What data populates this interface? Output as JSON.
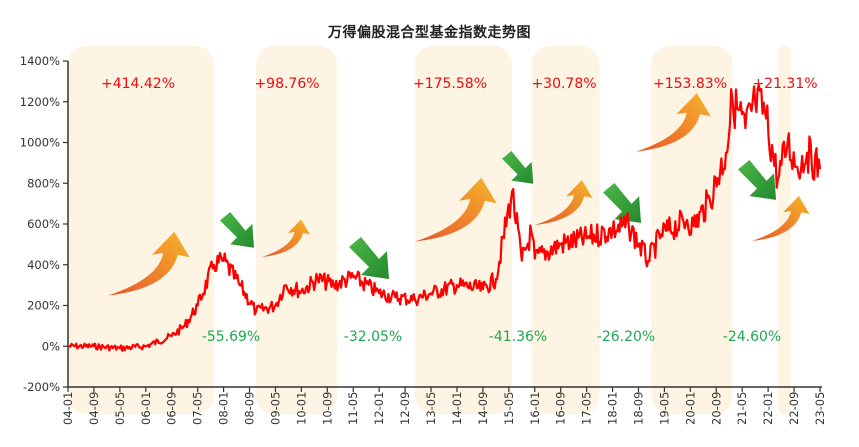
{
  "chart_data": {
    "type": "line",
    "title": "万得偏股混合型基金指数走势图",
    "xlabel": "",
    "ylabel": "",
    "ylim": [
      -200,
      1400
    ],
    "y_ticks": [
      "-200%",
      "0%",
      "200%",
      "400%",
      "600%",
      "800%",
      "1000%",
      "1200%",
      "1400%"
    ],
    "x_ticks": [
      "04-01",
      "04-09",
      "05-05",
      "06-01",
      "06-09",
      "07-05",
      "08-01",
      "08-09",
      "09-05",
      "10-01",
      "10-09",
      "11-05",
      "12-01",
      "12-09",
      "13-05",
      "14-01",
      "14-09",
      "15-05",
      "16-01",
      "16-09",
      "17-05",
      "18-01",
      "18-09",
      "19-05",
      "20-01",
      "20-09",
      "21-05",
      "22-01",
      "22-09",
      "23-05"
    ],
    "grid": false,
    "line_color": "#ff0000",
    "series": [
      {
        "name": "万得偏股混合型基金指数",
        "x": [
          "04-01",
          "04-09",
          "05-05",
          "06-01",
          "06-09",
          "07-01",
          "07-05",
          "07-10",
          "08-01",
          "08-06",
          "08-11",
          "09-05",
          "09-08",
          "10-01",
          "10-06",
          "10-11",
          "11-05",
          "12-01",
          "12-06",
          "12-12",
          "13-05",
          "14-01",
          "14-09",
          "15-01",
          "15-06",
          "15-09",
          "15-12",
          "16-01",
          "16-09",
          "17-05",
          "18-01",
          "18-06",
          "18-12",
          "19-04",
          "19-12",
          "20-02",
          "20-07",
          "20-12",
          "21-02",
          "21-06",
          "21-09",
          "21-12",
          "22-04",
          "22-07",
          "22-10",
          "23-01",
          "23-05"
        ],
        "values": [
          0,
          0,
          -10,
          0,
          50,
          100,
          200,
          400,
          420,
          300,
          170,
          200,
          300,
          270,
          330,
          300,
          340,
          260,
          240,
          230,
          260,
          300,
          280,
          330,
          760,
          420,
          560,
          430,
          500,
          530,
          570,
          590,
          420,
          550,
          620,
          590,
          720,
          950,
          1210,
          1070,
          1200,
          1150,
          820,
          1000,
          880,
          950,
          870
        ]
      }
    ],
    "shaded_periods": [
      {
        "start": "04-01",
        "end": "07-10",
        "label": "+414.42%",
        "type": "rise"
      },
      {
        "start": "08-11",
        "end": "10-12",
        "label": "+98.76%",
        "type": "rise"
      },
      {
        "start": "12-12",
        "end": "15-06",
        "label": "+175.58%",
        "type": "rise"
      },
      {
        "start": "15-12",
        "end": "17-09",
        "label": "+30.78%",
        "type": "rise"
      },
      {
        "start": "19-01",
        "end": "21-02",
        "label": "+153.83%",
        "type": "rise"
      },
      {
        "start": "22-04",
        "end": "22-08",
        "label": "+21.31%",
        "type": "rise"
      }
    ],
    "annotations": {
      "rises": [
        "+414.42%",
        "+98.76%",
        "+175.58%",
        "+30.78%",
        "+153.83%",
        "+21.31%"
      ],
      "declines": [
        "-55.69%",
        "-32.05%",
        "-41.36%",
        "-26.20%",
        "-24.60%"
      ]
    }
  },
  "colors": {
    "line": "#ff0000",
    "band": "#fdf4e3",
    "rise_text": "#f00c0c",
    "decline_text": "#1ea84e",
    "rise_arrow_start": "#e8562a",
    "rise_arrow_end": "#f4b12a",
    "decline_arrow": "#2e9e3a"
  }
}
